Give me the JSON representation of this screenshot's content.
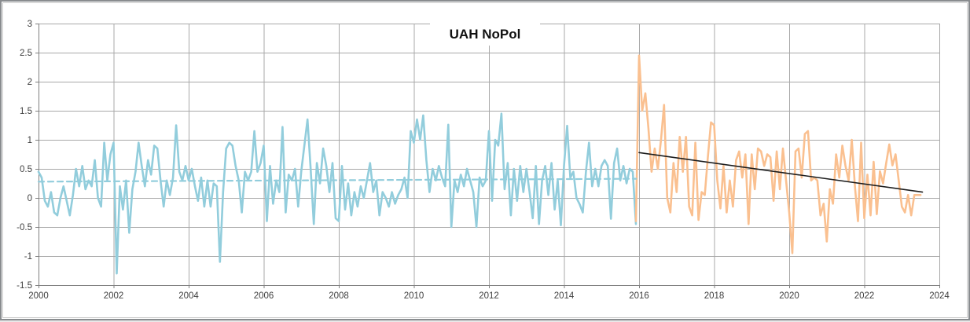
{
  "title": "UAH NoPol",
  "colors": {
    "series_pre": "#92CDDC",
    "series_post": "#FAC090",
    "trend_pre": "#92CDDC",
    "trend_post": "#1c1c1c",
    "grid": "#a8a8a8",
    "axis": "#808080",
    "label": "#404040",
    "background": "#ffffff"
  },
  "chart_data": {
    "type": "line",
    "title": "UAH NoPol",
    "xlabel": "",
    "ylabel": "",
    "grid": true,
    "legend": "none",
    "x_axis": {
      "range": [
        2000,
        2024
      ],
      "ticks": [
        2000,
        2002,
        2004,
        2006,
        2008,
        2010,
        2012,
        2014,
        2016,
        2018,
        2020,
        2022,
        2024
      ]
    },
    "y_axis": {
      "range": [
        -1.5,
        3
      ],
      "ticks": [
        3,
        2.5,
        2,
        1.5,
        1,
        0.5,
        0,
        -0.5,
        -1,
        -1.5
      ],
      "tick_labels": [
        "3",
        "2.5",
        "2",
        "1.5",
        "1",
        "0.5",
        "0",
        "-0.5",
        "-1",
        "-1.5"
      ]
    },
    "series": [
      {
        "name": "monthly-anomaly-2000-2015",
        "kind": "monthly",
        "color_key": "series_pre",
        "width": 2.6,
        "dash": "",
        "start_x": 2000.0,
        "step": 0.0833333,
        "values": [
          0.45,
          0.35,
          -0.05,
          -0.15,
          0.1,
          -0.25,
          -0.3,
          0.0,
          0.2,
          -0.05,
          -0.3,
          0.05,
          0.5,
          0.2,
          0.55,
          0.15,
          0.3,
          0.2,
          0.65,
          0.0,
          -0.15,
          0.95,
          0.3,
          0.75,
          0.95,
          -1.3,
          0.2,
          -0.2,
          0.3,
          -0.6,
          0.15,
          0.45,
          0.95,
          0.55,
          0.2,
          0.65,
          0.4,
          0.9,
          0.85,
          0.3,
          -0.15,
          0.3,
          0.05,
          0.35,
          1.25,
          0.45,
          0.3,
          0.55,
          0.3,
          0.5,
          0.2,
          -0.05,
          0.35,
          -0.15,
          0.3,
          -0.15,
          0.25,
          0.2,
          -1.1,
          0.1,
          0.85,
          0.95,
          0.9,
          0.55,
          0.3,
          -0.25,
          0.45,
          0.3,
          0.45,
          1.15,
          0.45,
          0.6,
          0.9,
          -0.4,
          0.55,
          -0.1,
          0.3,
          0.1,
          1.22,
          -0.25,
          0.4,
          0.3,
          0.5,
          -0.15,
          0.45,
          0.9,
          1.35,
          0.5,
          -0.45,
          0.6,
          0.25,
          0.85,
          0.55,
          0.1,
          0.6,
          -0.35,
          -0.4,
          0.55,
          -0.2,
          0.25,
          -0.3,
          0.1,
          -0.15,
          0.2,
          0.0,
          0.3,
          0.6,
          0.1,
          0.3,
          -0.3,
          0.1,
          0.0,
          -0.15,
          0.1,
          -0.1,
          0.05,
          0.15,
          0.35,
          0.0,
          1.15,
          0.95,
          1.35,
          1.0,
          1.42,
          0.65,
          0.1,
          0.5,
          0.3,
          0.55,
          0.35,
          0.2,
          1.26,
          -0.5,
          0.3,
          0.1,
          0.4,
          0.2,
          0.5,
          0.3,
          0.1,
          -0.5,
          0.35,
          0.2,
          0.3,
          1.15,
          -0.05,
          1.0,
          0.9,
          1.45,
          0.15,
          0.6,
          -0.3,
          0.5,
          -0.05,
          0.55,
          0.1,
          0.5,
          0.1,
          -0.35,
          0.55,
          -0.45,
          0.3,
          0.55,
          0.05,
          0.6,
          -0.2,
          0.3,
          -0.47,
          0.55,
          1.24,
          0.35,
          0.45,
          0.0,
          -0.11,
          -0.25,
          0.45,
          0.95,
          0.2,
          0.5,
          0.2,
          0.55,
          0.65,
          0.55,
          -0.36,
          0.6,
          0.85,
          0.3,
          0.55,
          0.25,
          0.5,
          0.45,
          -0.45
        ]
      },
      {
        "name": "monthly-anomaly-2016-2023",
        "kind": "monthly",
        "color_key": "series_post",
        "width": 2.6,
        "dash": "",
        "start_x": 2015.9167,
        "step": 0.0833333,
        "values": [
          -0.4,
          2.45,
          1.5,
          1.8,
          1.2,
          0.45,
          0.85,
          0.5,
          1.0,
          1.6,
          0.0,
          -0.25,
          0.6,
          0.1,
          1.05,
          0.45,
          1.05,
          -0.15,
          -0.3,
          0.95,
          -0.38,
          0.1,
          0.05,
          0.7,
          1.3,
          1.25,
          0.3,
          -0.18,
          0.55,
          -0.25,
          0.3,
          -0.15,
          0.65,
          0.8,
          0.35,
          0.75,
          -0.45,
          0.75,
          0.15,
          0.85,
          0.8,
          0.55,
          0.75,
          0.7,
          -0.05,
          0.8,
          0.15,
          0.85,
          0.3,
          -0.25,
          -0.95,
          0.8,
          0.85,
          0.35,
          1.1,
          1.15,
          0.3,
          0.35,
          0.3,
          -0.3,
          -0.1,
          -0.75,
          0.15,
          -0.1,
          0.75,
          0.35,
          0.9,
          0.55,
          0.3,
          1.0,
          0.2,
          -0.4,
          0.95,
          -0.35,
          0.4,
          -0.3,
          0.62,
          -0.28,
          0.46,
          0.25,
          0.6,
          0.92,
          0.56,
          0.75,
          0.3,
          -0.15,
          -0.25,
          0.05,
          -0.3,
          0.05,
          0.05,
          0.05
        ]
      },
      {
        "name": "trend-2000-2015-dashed",
        "kind": "segment",
        "color_key": "trend_pre",
        "width": 2.2,
        "dash": "7 5",
        "points": [
          [
            2000.0,
            0.28
          ],
          [
            2015.92,
            0.33
          ]
        ]
      },
      {
        "name": "trend-2016-2023",
        "kind": "segment",
        "color_key": "trend_post",
        "width": 1.6,
        "dash": "",
        "points": [
          [
            2016.0,
            0.78
          ],
          [
            2023.55,
            0.1
          ]
        ]
      }
    ]
  }
}
